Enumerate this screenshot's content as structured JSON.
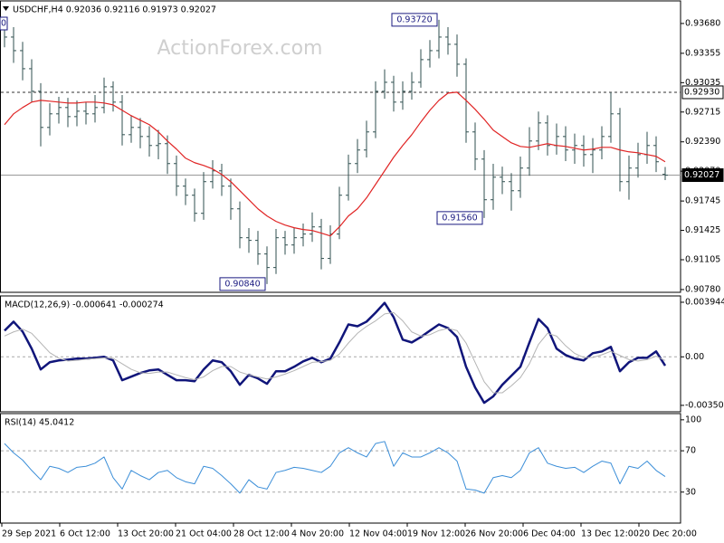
{
  "chart_data": [
    {
      "type": "ohlc",
      "title": "USDCHF,H4 0.92036 0.92116 0.91973 0.92027",
      "watermark": "ActionForex.com",
      "edge_label": "0",
      "color": "#2f4f4f",
      "open": [
        0.9365,
        0.93532,
        0.93384,
        0.93187,
        0.92941,
        0.92547,
        0.92695,
        0.92764,
        0.92665,
        0.92724,
        0.92695,
        0.92764,
        0.9299,
        0.92823,
        0.92468,
        0.92547,
        0.92448,
        0.9235,
        0.9237,
        0.92153,
        0.91907,
        0.91808,
        0.91611,
        0.91956,
        0.92074,
        0.91907,
        0.9166,
        0.91345,
        0.91316,
        0.91168,
        0.9102,
        0.91345,
        0.91266,
        0.91345,
        0.91385,
        0.91463,
        0.91119,
        0.91385,
        0.91808,
        0.92153,
        0.92301,
        0.92498,
        0.92941,
        0.93039,
        0.92823,
        0.92941,
        0.93039,
        0.93286,
        0.93384,
        0.93532,
        0.93453,
        0.93236,
        0.92498,
        0.92202,
        0.91759,
        0.92005,
        0.91956,
        0.91857,
        0.92104,
        0.92399,
        0.92596,
        0.9235,
        0.92448,
        0.92301,
        0.9235,
        0.92251,
        0.92301,
        0.92448,
        0.92695,
        0.91956,
        0.92104,
        0.92251,
        0.9235,
        0.92036
      ],
      "high": [
        0.9369,
        0.9364,
        0.9348,
        0.9329,
        0.9303,
        0.9281,
        0.9288,
        0.9287,
        0.9284,
        0.9282,
        0.929,
        0.9309,
        0.9305,
        0.929,
        0.9268,
        0.9265,
        0.9256,
        0.9252,
        0.9246,
        0.9224,
        0.9199,
        0.9188,
        0.9206,
        0.9219,
        0.9215,
        0.9199,
        0.9174,
        0.9145,
        0.9142,
        0.9125,
        0.9144,
        0.9142,
        0.9145,
        0.915,
        0.9162,
        0.9155,
        0.9148,
        0.919,
        0.9225,
        0.9242,
        0.9262,
        0.9305,
        0.9318,
        0.9311,
        0.9305,
        0.9315,
        0.934,
        0.935,
        0.9372,
        0.9364,
        0.9356,
        0.933,
        0.926,
        0.923,
        0.9215,
        0.9212,
        0.9205,
        0.9223,
        0.9255,
        0.9272,
        0.9268,
        0.9259,
        0.9256,
        0.9248,
        0.9246,
        0.9243,
        0.9256,
        0.9293,
        0.9276,
        0.9224,
        0.9238,
        0.925,
        0.9245,
        0.92116
      ],
      "low": [
        0.9342,
        0.9325,
        0.9306,
        0.9282,
        0.9234,
        0.9246,
        0.9259,
        0.9255,
        0.9256,
        0.9258,
        0.926,
        0.927,
        0.9272,
        0.9235,
        0.9238,
        0.9232,
        0.9223,
        0.922,
        0.9204,
        0.918,
        0.917,
        0.9152,
        0.9154,
        0.9188,
        0.918,
        0.9154,
        0.9123,
        0.9118,
        0.9105,
        0.9084,
        0.9095,
        0.9116,
        0.9117,
        0.9125,
        0.913,
        0.91,
        0.9106,
        0.9133,
        0.9175,
        0.9205,
        0.9222,
        0.9243,
        0.9286,
        0.9272,
        0.9274,
        0.9285,
        0.9298,
        0.932,
        0.933,
        0.9334,
        0.931,
        0.9238,
        0.9208,
        0.9156,
        0.9165,
        0.9182,
        0.9164,
        0.9178,
        0.9202,
        0.923,
        0.9224,
        0.9225,
        0.9218,
        0.9215,
        0.9212,
        0.9205,
        0.922,
        0.9238,
        0.9185,
        0.9176,
        0.92,
        0.9215,
        0.9206,
        0.91973
      ],
      "close": [
        0.93532,
        0.93384,
        0.93187,
        0.92941,
        0.92547,
        0.92695,
        0.92764,
        0.92665,
        0.92724,
        0.92695,
        0.92764,
        0.9299,
        0.92823,
        0.92468,
        0.92547,
        0.92448,
        0.9235,
        0.9237,
        0.92153,
        0.91907,
        0.91808,
        0.91611,
        0.91956,
        0.92074,
        0.91907,
        0.9166,
        0.91345,
        0.91316,
        0.91168,
        0.9102,
        0.91345,
        0.91266,
        0.91345,
        0.91385,
        0.91463,
        0.91119,
        0.91385,
        0.91808,
        0.92153,
        0.92301,
        0.92498,
        0.92941,
        0.93039,
        0.92823,
        0.92941,
        0.93039,
        0.93286,
        0.93384,
        0.93532,
        0.93453,
        0.93236,
        0.92498,
        0.92202,
        0.91759,
        0.92005,
        0.91956,
        0.91857,
        0.92104,
        0.92399,
        0.92596,
        0.9235,
        0.92448,
        0.92301,
        0.9235,
        0.92251,
        0.92301,
        0.92448,
        0.92695,
        0.91956,
        0.92104,
        0.92251,
        0.9235,
        0.92173,
        0.92027
      ],
      "ma": {
        "color": "#e02424",
        "values": [
          0.92577,
          0.92695,
          0.92764,
          0.92823,
          0.92842,
          0.92833,
          0.92823,
          0.92813,
          0.92813,
          0.92823,
          0.92823,
          0.92813,
          0.92793,
          0.92734,
          0.92675,
          0.92626,
          0.92577,
          0.92498,
          0.92399,
          0.92311,
          0.92212,
          0.92163,
          0.92133,
          0.92094,
          0.92035,
          0.91956,
          0.91858,
          0.91759,
          0.9166,
          0.91582,
          0.91523,
          0.91483,
          0.91454,
          0.91434,
          0.91424,
          0.91395,
          0.91365,
          0.91463,
          0.91582,
          0.9166,
          0.91779,
          0.91926,
          0.92074,
          0.92222,
          0.9235,
          0.92468,
          0.92606,
          0.92734,
          0.92842,
          0.92921,
          0.92931,
          0.92842,
          0.92744,
          0.92636,
          0.92518,
          0.92448,
          0.92379,
          0.9234,
          0.9233,
          0.9235,
          0.9237,
          0.9235,
          0.9234,
          0.9232,
          0.92301,
          0.92311,
          0.9233,
          0.9233,
          0.92301,
          0.92281,
          0.92271,
          0.92251,
          0.92232,
          0.92173
        ]
      },
      "annotations": [
        {
          "value": 0.9372,
          "label": "0.93720"
        },
        {
          "value": 0.9156,
          "label": "0.91560"
        },
        {
          "value": 0.9084,
          "label": "0.90840"
        }
      ],
      "levels": [
        {
          "value": 0.9293,
          "label": "0.92930",
          "style": "dashed"
        },
        {
          "value": 0.92027,
          "label": "0.92027",
          "style": "solid"
        }
      ],
      "ylim": [
        0.9075,
        0.93926
      ],
      "yticks": [
        {
          "value": 0.9368,
          "label": "0.93680"
        },
        0.93355,
        {
          "value": 0.93035,
          "label": "0.93035"
        },
        0.92715,
        {
          "value": 0.9239,
          "label": "0.92390"
        },
        {
          "value": 0.9207,
          "label": "0.92070"
        },
        0.91745,
        0.91425,
        0.91105,
        {
          "value": 0.9078,
          "label": "0.90780"
        }
      ]
    },
    {
      "type": "line",
      "title": "MACD(12,26,9) -0.000641 -0.000274",
      "series": [
        {
          "color": "#10157a",
          "values": [
            0.00189,
            0.00254,
            0.00182,
            0.00059,
            -0.00091,
            -0.00039,
            -0.00026,
            -0.0002,
            -0.00013,
            -0.00013,
            -7e-05,
            0,
            -0.00026,
            -0.00169,
            -0.00143,
            -0.00117,
            -0.00098,
            -0.00091,
            -0.0013,
            -0.00169,
            -0.00169,
            -0.00176,
            -0.00091,
            -0.00026,
            -0.00039,
            -0.00104,
            -0.00202,
            -0.0013,
            -0.00156,
            -0.00195,
            -0.00104,
            -0.00104,
            -0.00072,
            -0.00033,
            -7e-05,
            -0.00039,
            -0.00013,
            0.00104,
            0.00234,
            0.00221,
            0.00254,
            0.00319,
            0.0039,
            0.00286,
            0.00124,
            0.00104,
            0.00143,
            0.00189,
            0.00234,
            0.00208,
            0.00143,
            -0.00072,
            -0.00221,
            -0.00332,
            -0.00286,
            -0.00202,
            -0.00137,
            -0.00072,
            0.00104,
            0.00273,
            0.00208,
            0.00059,
            0.00013,
            -0.00013,
            -0.00026,
            0.00026,
            0.00039,
            0.00072,
            -0.00104,
            -0.00039,
            -7e-05,
            -7e-05,
            0.00039,
            -0.00064
          ]
        },
        {
          "color": "#b4b4b4",
          "values": [
            0.0015,
            0.0018,
            0.002,
            0.0017,
            0.001,
            0.0003,
            -0.0001,
            -0.0003,
            -0.00025,
            -0.00018,
            -0.00013,
            -8e-05,
            -0.0001,
            -0.0005,
            -0.0009,
            -0.00115,
            -0.0012,
            -0.0011,
            -0.0011,
            -0.0013,
            -0.0015,
            -0.00165,
            -0.00145,
            -0.001,
            -0.0007,
            -0.0007,
            -0.0011,
            -0.0013,
            -0.00145,
            -0.0016,
            -0.00145,
            -0.00125,
            -0.001,
            -0.0007,
            -0.0004,
            -0.00035,
            -0.00025,
            0.0002,
            0.001,
            0.0017,
            0.0022,
            0.0026,
            0.0031,
            0.0032,
            0.0026,
            0.0018,
            0.0015,
            0.0016,
            0.0019,
            0.00205,
            0.0019,
            0.001,
            -0.0004,
            -0.0018,
            -0.0026,
            -0.0026,
            -0.0021,
            -0.0015,
            -0.0005,
            0.0009,
            0.0017,
            0.0015,
            0.0008,
            0.00025,
            -5e-05,
            -5e-05,
            0.00015,
            0.0004,
            0.0001,
            -0.0002,
            -0.0003,
            -0.0002,
            5e-05,
            -0.00027
          ]
        }
      ],
      "levels": [
        {
          "value": 0,
          "style": "dashed"
        }
      ],
      "ylim": [
        -0.00397,
        0.0044
      ],
      "yticks": [
        0.003944,
        {
          "value": 0,
          "label": "0.00"
        },
        -0.003506
      ]
    },
    {
      "type": "line",
      "title": "RSI(14) 45.0412",
      "series": [
        {
          "color": "#3b8ed8",
          "values": [
            77,
            68,
            61,
            51,
            42,
            55,
            53,
            49,
            54,
            55,
            58,
            64,
            44,
            33,
            51,
            46,
            42,
            49,
            51,
            44,
            40,
            38,
            55,
            53,
            46,
            38,
            29,
            42,
            35,
            33,
            49,
            51,
            54,
            53,
            51,
            49,
            55,
            68,
            73,
            68,
            64,
            77,
            79,
            55,
            68,
            64,
            64,
            68,
            73,
            68,
            60,
            33,
            32,
            29,
            44,
            46,
            44,
            51,
            68,
            73,
            58,
            55,
            53,
            54,
            49,
            55,
            60,
            58,
            38,
            55,
            53,
            60,
            51,
            45.04
          ]
        }
      ],
      "levels": [
        {
          "value": 70,
          "style": "dashed"
        },
        {
          "value": 30,
          "style": "dashed"
        }
      ],
      "ylim": [
        0,
        106
      ],
      "yticks": [
        100,
        70,
        30
      ]
    }
  ],
  "time_axis": {
    "labels": [
      "29 Sep 2021",
      "6 Oct 12:00",
      "13 Oct 20:00",
      "21 Oct 04:00",
      "28 Oct 12:00",
      "4 Nov 20:00",
      "12 Nov 04:00",
      "19 Nov 12:00",
      "26 Nov 20:00",
      "6 Dec 04:00",
      "13 Dec 12:00",
      "20 Dec 20:00"
    ]
  }
}
